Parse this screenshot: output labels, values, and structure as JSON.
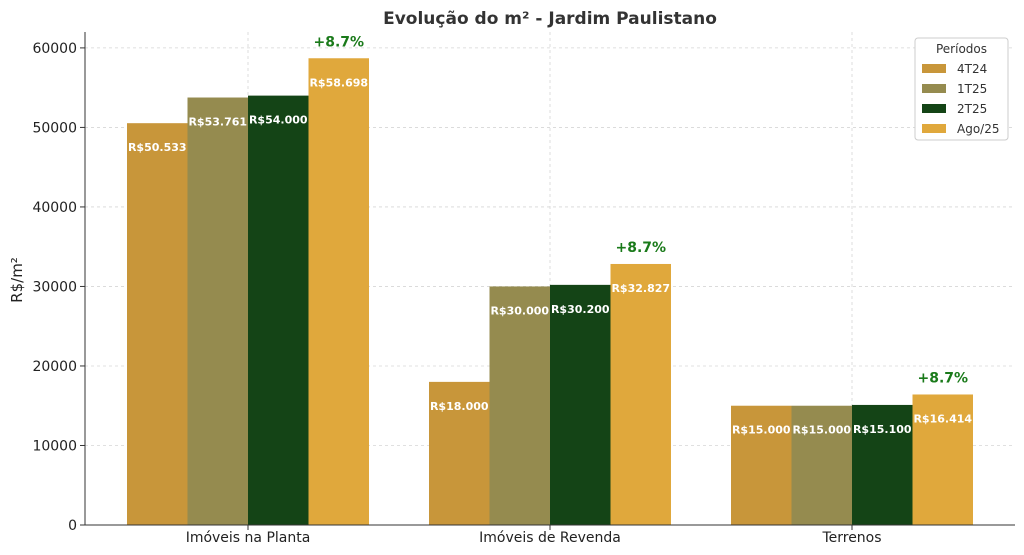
{
  "chart_data": {
    "type": "bar",
    "title": "Evolução do m² - Jardim Paulistano",
    "xlabel": "",
    "ylabel": "R$/m²",
    "ylim": [
      0,
      62000
    ],
    "yticks": [
      0,
      10000,
      20000,
      30000,
      40000,
      50000,
      60000
    ],
    "grid": true,
    "legend_title": "Períodos",
    "legend_position": "top-right",
    "categories": [
      "Imóveis na Planta",
      "Imóveis de Revenda",
      "Terrenos"
    ],
    "series": [
      {
        "name": "4T24",
        "color": "#c8963a",
        "values": [
          50533,
          18000,
          15000
        ],
        "labels": [
          "R$50.533",
          "R$18.000",
          "R$15.000"
        ]
      },
      {
        "name": "1T25",
        "color": "#958b4f",
        "values": [
          53761,
          30000,
          15000
        ],
        "labels": [
          "R$53.761",
          "R$30.000",
          "R$15.000"
        ]
      },
      {
        "name": "2T25",
        "color": "#144416",
        "values": [
          54000,
          30200,
          15100
        ],
        "labels": [
          "R$54.000",
          "R$30.200",
          "R$15.100"
        ]
      },
      {
        "name": "Ago/25",
        "color": "#e0a83c",
        "values": [
          58698,
          32827,
          16414
        ],
        "labels": [
          "R$58.698",
          "R$32.827",
          "R$16.414"
        ]
      }
    ],
    "annotations": [
      "+8.7%",
      "+8.7%",
      "+8.7%"
    ]
  }
}
